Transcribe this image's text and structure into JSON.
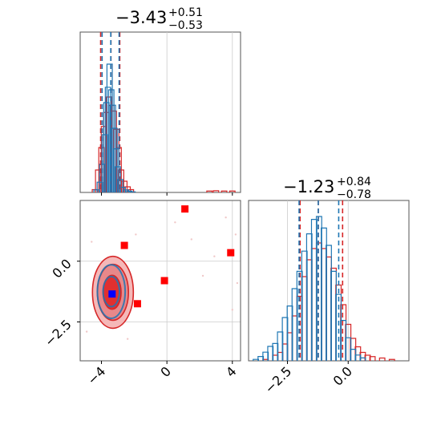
{
  "chart_data": {
    "type": "corner",
    "colors": {
      "blue": "#1f77b4",
      "red": "#d62728",
      "red_marker": "#ff0000",
      "blue_marker": "#0000ff",
      "fill_light": "#f5b8b8",
      "fill_mid": "#e8888a",
      "fill_dark": "#e03030",
      "grid": "#cccccc"
    },
    "parameters": [
      {
        "title_main": "−3.43",
        "title_plus": "+0.51",
        "title_minus": "−0.53",
        "range": [
          -5.3,
          4.5
        ],
        "ticks": [
          -4,
          0,
          4
        ],
        "tick_labels": [
          "−4",
          "0",
          "4"
        ]
      },
      {
        "title_main": "−1.23",
        "title_plus": "+0.84",
        "title_minus": "−0.78",
        "range": [
          -4.1,
          2.5
        ],
        "ticks": [
          -2.5,
          0.0
        ],
        "tick_labels": [
          "−2.5",
          "0.0"
        ]
      }
    ],
    "histogram_1": {
      "blue_quantiles": [
        -3.96,
        -3.43,
        -2.92
      ],
      "red_quantiles": [
        -4.05,
        -3.42,
        -2.88
      ],
      "blue_bins": [
        {
          "x": -4.3,
          "y": 0.02
        },
        {
          "x": -4.1,
          "y": 0.08
        },
        {
          "x": -3.95,
          "y": 0.22
        },
        {
          "x": -3.8,
          "y": 0.45
        },
        {
          "x": -3.7,
          "y": 0.7
        },
        {
          "x": -3.6,
          "y": 0.82
        },
        {
          "x": -3.5,
          "y": 1.0
        },
        {
          "x": -3.4,
          "y": 0.8
        },
        {
          "x": -3.3,
          "y": 0.68
        },
        {
          "x": -3.2,
          "y": 0.5
        },
        {
          "x": -3.1,
          "y": 0.34
        },
        {
          "x": -3.0,
          "y": 0.2
        },
        {
          "x": -2.85,
          "y": 0.1
        },
        {
          "x": -2.7,
          "y": 0.04
        },
        {
          "x": -2.5,
          "y": 0.02
        },
        {
          "x": -2.3,
          "y": 0.01
        },
        {
          "x": -2.1,
          "y": 0.005
        }
      ],
      "red_bins": [
        {
          "x": -4.4,
          "y": 0.02
        },
        {
          "x": -4.2,
          "y": 0.16
        },
        {
          "x": -4.0,
          "y": 0.32
        },
        {
          "x": -3.85,
          "y": 0.47
        },
        {
          "x": -3.7,
          "y": 0.57
        },
        {
          "x": -3.55,
          "y": 0.68
        },
        {
          "x": -3.4,
          "y": 0.62
        },
        {
          "x": -3.25,
          "y": 0.58
        },
        {
          "x": -3.1,
          "y": 0.45
        },
        {
          "x": -2.95,
          "y": 0.32
        },
        {
          "x": -2.8,
          "y": 0.16
        },
        {
          "x": -2.6,
          "y": 0.08
        },
        {
          "x": -2.4,
          "y": 0.04
        },
        {
          "x": -2.2,
          "y": 0.02
        },
        {
          "x": 2.6,
          "y": 0.01
        },
        {
          "x": 3.0,
          "y": 0.012
        },
        {
          "x": 3.5,
          "y": 0.01
        },
        {
          "x": 4.0,
          "y": 0.01
        }
      ]
    },
    "histogram_2": {
      "blue_quantiles": [
        -2.02,
        -1.23,
        -0.39
      ],
      "red_quantiles": [
        -1.98,
        -1.23,
        -0.23
      ],
      "blue_bins": [
        {
          "x": -3.8,
          "y": 0.01
        },
        {
          "x": -3.6,
          "y": 0.03
        },
        {
          "x": -3.4,
          "y": 0.06
        },
        {
          "x": -3.2,
          "y": 0.1
        },
        {
          "x": -3.0,
          "y": 0.12
        },
        {
          "x": -2.8,
          "y": 0.2
        },
        {
          "x": -2.6,
          "y": 0.3
        },
        {
          "x": -2.4,
          "y": 0.38
        },
        {
          "x": -2.2,
          "y": 0.5
        },
        {
          "x": -2.0,
          "y": 0.62
        },
        {
          "x": -1.8,
          "y": 0.76
        },
        {
          "x": -1.6,
          "y": 0.88
        },
        {
          "x": -1.4,
          "y": 0.98
        },
        {
          "x": -1.2,
          "y": 1.0
        },
        {
          "x": -1.0,
          "y": 0.92
        },
        {
          "x": -0.8,
          "y": 0.8
        },
        {
          "x": -0.6,
          "y": 0.62
        },
        {
          "x": -0.4,
          "y": 0.46
        },
        {
          "x": -0.2,
          "y": 0.28
        },
        {
          "x": 0.0,
          "y": 0.16
        },
        {
          "x": 0.2,
          "y": 0.08
        },
        {
          "x": 0.4,
          "y": 0.04
        },
        {
          "x": 0.6,
          "y": 0.02
        }
      ],
      "red_bins": [
        {
          "x": -3.4,
          "y": 0.01
        },
        {
          "x": -3.0,
          "y": 0.04
        },
        {
          "x": -2.8,
          "y": 0.06
        },
        {
          "x": -2.6,
          "y": 0.12
        },
        {
          "x": -2.4,
          "y": 0.2
        },
        {
          "x": -2.2,
          "y": 0.32
        },
        {
          "x": -2.0,
          "y": 0.46
        },
        {
          "x": -1.8,
          "y": 0.6
        },
        {
          "x": -1.6,
          "y": 0.72
        },
        {
          "x": -1.4,
          "y": 0.8
        },
        {
          "x": -1.2,
          "y": 0.84
        },
        {
          "x": -1.0,
          "y": 0.8
        },
        {
          "x": -0.8,
          "y": 0.74
        },
        {
          "x": -0.6,
          "y": 0.66
        },
        {
          "x": -0.4,
          "y": 0.54
        },
        {
          "x": -0.2,
          "y": 0.4
        },
        {
          "x": 0.0,
          "y": 0.26
        },
        {
          "x": 0.2,
          "y": 0.16
        },
        {
          "x": 0.4,
          "y": 0.1
        },
        {
          "x": 0.6,
          "y": 0.06
        },
        {
          "x": 0.8,
          "y": 0.04
        },
        {
          "x": 1.0,
          "y": 0.03
        },
        {
          "x": 1.4,
          "y": 0.02
        },
        {
          "x": 1.8,
          "y": 0.01
        }
      ]
    },
    "scatter_2d": {
      "red_contours": [
        {
          "cx": -3.3,
          "cy": -1.28,
          "rx": 1.25,
          "ry": 1.48,
          "level": "outer"
        },
        {
          "cx": -3.3,
          "cy": -1.28,
          "rx": 0.95,
          "ry": 1.15,
          "level": "mid"
        },
        {
          "cx": -3.35,
          "cy": -1.28,
          "rx": 0.55,
          "ry": 0.7,
          "level": "inner"
        }
      ],
      "blue_contours": [
        {
          "cx": -3.4,
          "cy": -1.25,
          "rx": 0.85,
          "ry": 1.1
        },
        {
          "cx": -3.4,
          "cy": -1.25,
          "rx": 0.5,
          "ry": 0.62
        }
      ],
      "red_markers": [
        {
          "x": 1.1,
          "y": 2.15
        },
        {
          "x": -2.6,
          "y": 0.65
        },
        {
          "x": 3.9,
          "y": 0.35
        },
        {
          "x": -0.15,
          "y": -0.8
        },
        {
          "x": -1.8,
          "y": -1.75
        }
      ],
      "blue_marker": {
        "x": -3.35,
        "y": -1.35
      },
      "faint_points": [
        {
          "x": 4.2,
          "y": 1.1
        },
        {
          "x": 4.3,
          "y": -0.9
        },
        {
          "x": 3.6,
          "y": 1.8
        },
        {
          "x": 2.2,
          "y": -0.6
        },
        {
          "x": 1.5,
          "y": 0.9
        },
        {
          "x": -4.6,
          "y": 0.8
        },
        {
          "x": -4.9,
          "y": -2.9
        },
        {
          "x": -2.4,
          "y": -3.2
        },
        {
          "x": 0.5,
          "y": 1.6
        },
        {
          "x": -1.9,
          "y": 1.1
        },
        {
          "x": 4.0,
          "y": -2.0
        },
        {
          "x": 2.9,
          "y": 0.2
        }
      ]
    }
  }
}
